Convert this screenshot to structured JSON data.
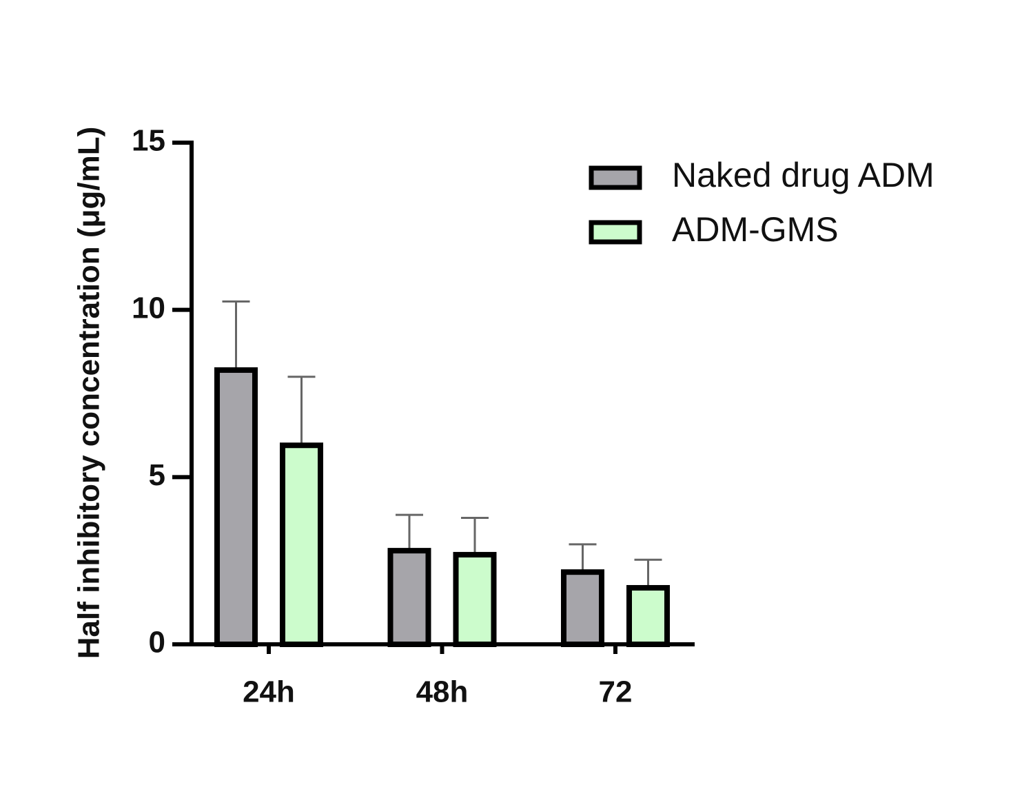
{
  "chart_data": {
    "type": "bar",
    "y_label": "Half inhibitory concentration (μg/mL)",
    "categories": [
      "24h",
      "48h",
      "72"
    ],
    "series": [
      {
        "name": "Naked drug ADM",
        "color": "#a6a5aa",
        "values": [
          8.2,
          2.8,
          2.16
        ],
        "errors": [
          2.05,
          1.07,
          0.83
        ]
      },
      {
        "name": "ADM-GMS",
        "color": "#ccfccc",
        "values": [
          5.95,
          2.68,
          1.69
        ],
        "errors": [
          2.05,
          1.1,
          0.84
        ]
      }
    ],
    "ylim": [
      0,
      15
    ],
    "yticks": [
      0,
      5,
      10,
      15
    ],
    "grid": false,
    "legend": "top-right"
  }
}
